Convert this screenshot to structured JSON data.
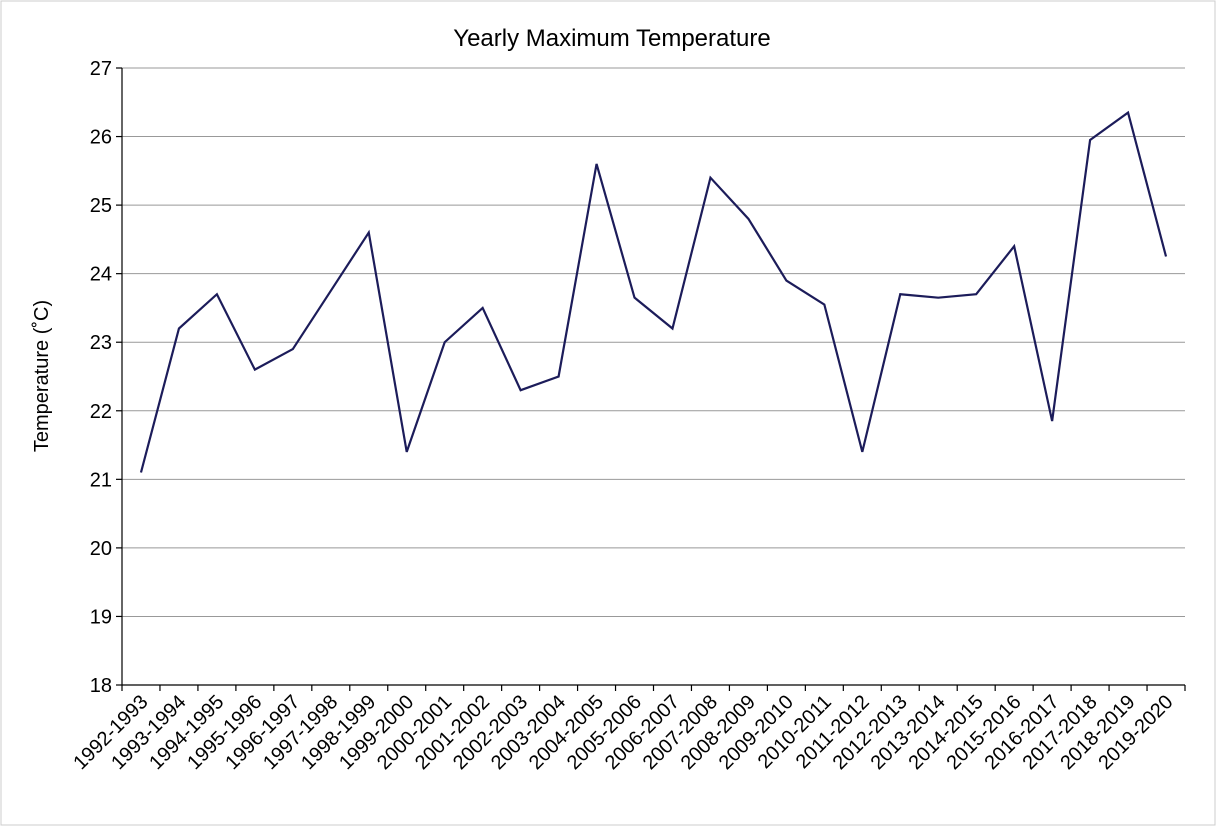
{
  "chart_data": {
    "type": "line",
    "title": "Yearly Maximum  Temperature",
    "y_label": "Temperature  (˚C)",
    "categories": [
      "1992-1993",
      "1993-1994",
      "1994-1995",
      "1995-1996",
      "1996-1997",
      "1997-1998",
      "1998-1999",
      "1999-2000",
      "2000-2001",
      "2001-2002",
      "2002-2003",
      "2003-2004",
      "2004-2005",
      "2005-2006",
      "2006-2007",
      "2007-2008",
      "2008-2009",
      "2009-2010",
      "2010-2011",
      "2011-2012",
      "2012-2013",
      "2013-2014",
      "2014-2015",
      "2015-2016",
      "2016-2017",
      "2017-2018",
      "2018-2019",
      "2019-2020"
    ],
    "series": [
      {
        "name": "Temperature",
        "color": "#1c1c5a",
        "values": [
          21.1,
          23.2,
          23.7,
          22.6,
          22.9,
          23.75,
          24.6,
          21.4,
          23.0,
          23.5,
          22.3,
          22.5,
          25.6,
          23.65,
          23.2,
          25.4,
          24.8,
          23.9,
          23.55,
          21.4,
          23.7,
          23.65,
          23.7,
          24.4,
          21.85,
          25.95,
          26.35,
          24.25
        ]
      }
    ],
    "ylim": [
      18,
      27
    ],
    "yticks": [
      18,
      19,
      20,
      21,
      22,
      23,
      24,
      25,
      26,
      27
    ],
    "grid": true
  }
}
